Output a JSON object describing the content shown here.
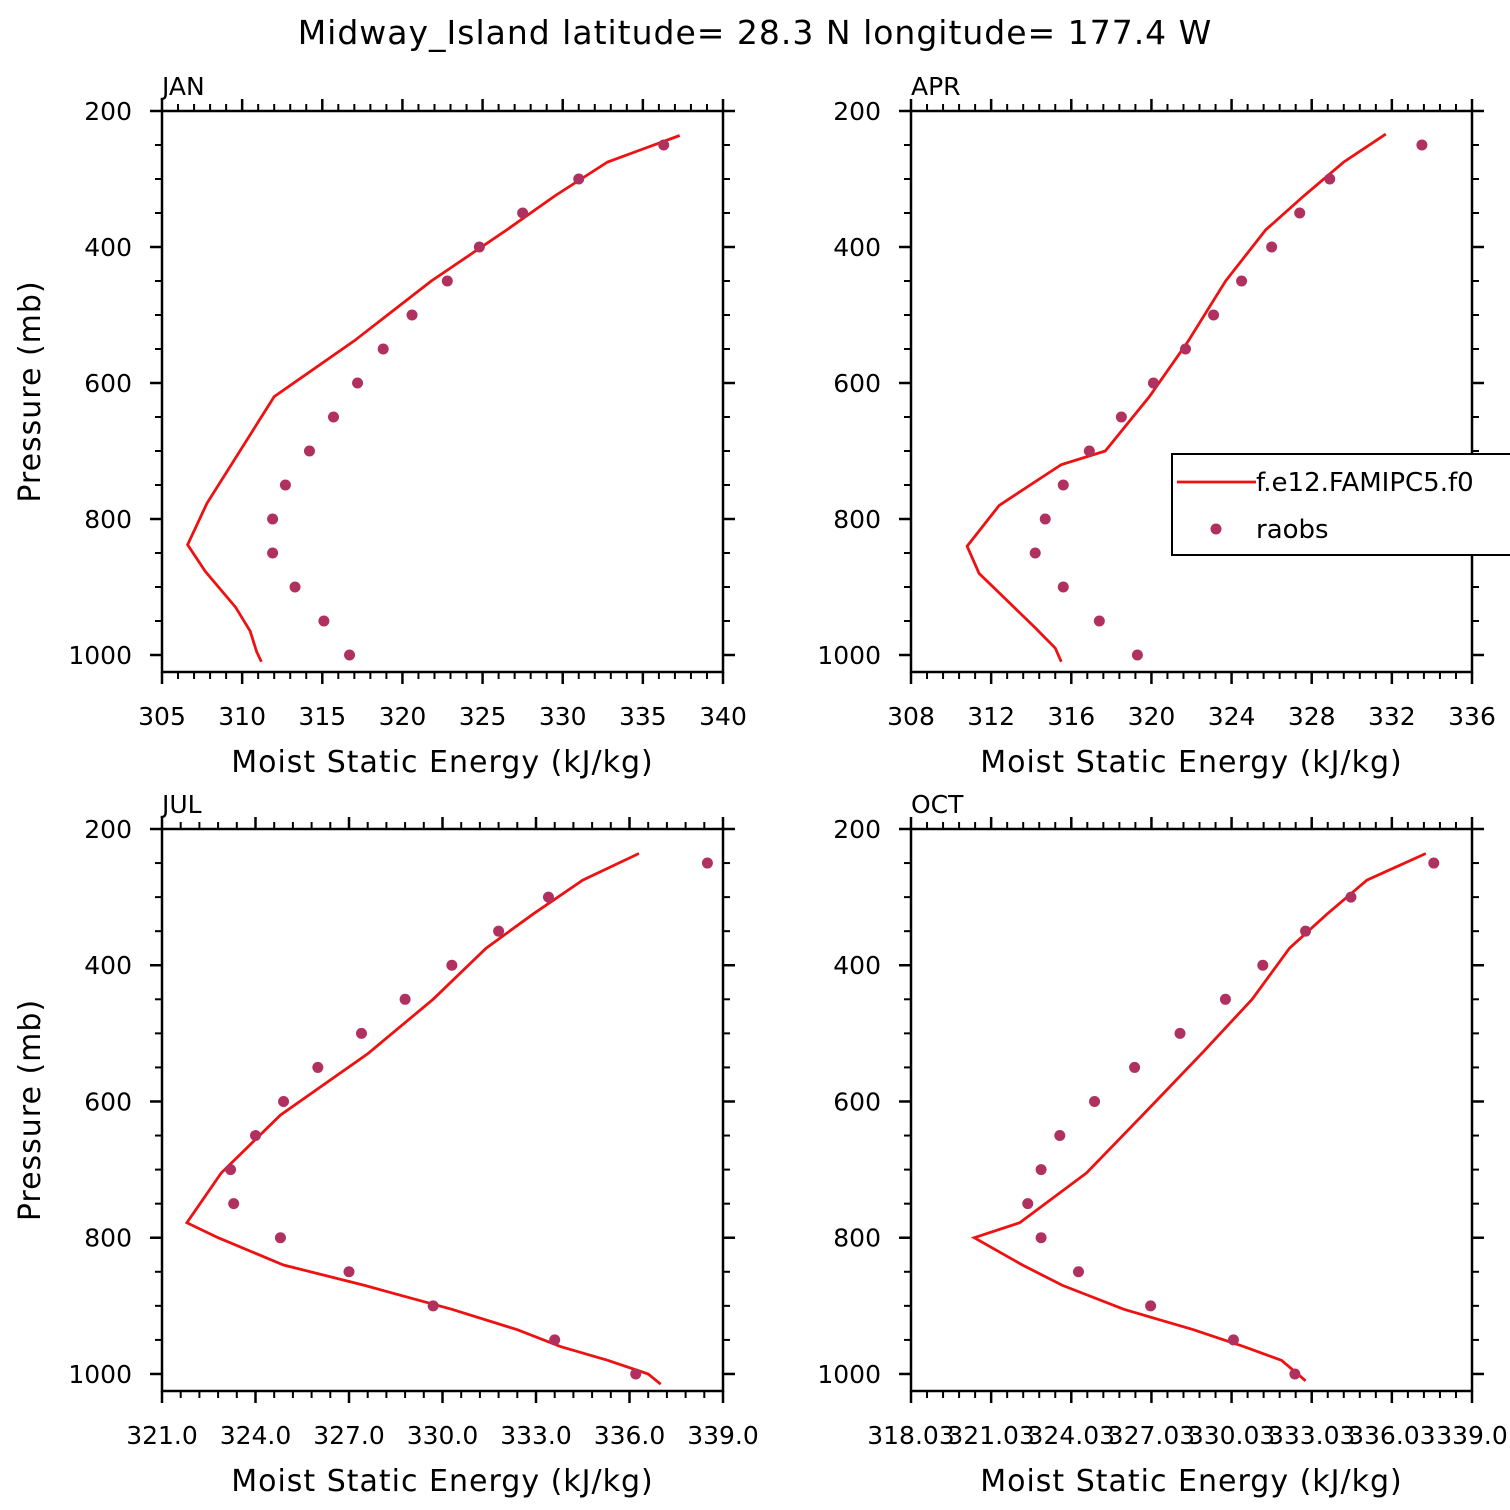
{
  "title": "Midway_Island  latitude= 28.3 N longitude= 177.4 W",
  "colors": {
    "model": "#ee1111",
    "obs": "#b03060",
    "axis": "#000000"
  },
  "legend": {
    "placement": "right-middle of APR panel",
    "items": [
      {
        "label": "f.e12.FAMIPC5.f0",
        "style": "line",
        "color": "#ee1111"
      },
      {
        "label": "raobs",
        "style": "marker",
        "color": "#b03060"
      }
    ]
  },
  "chart_data": [
    {
      "type": "line",
      "panel_title": "JAN",
      "xlabel": "Moist Static Energy (kJ/kg)",
      "ylabel": "Pressure (mb)",
      "xlim": [
        305,
        340
      ],
      "ylim": [
        1025,
        200
      ],
      "y_reversed": true,
      "xticks": [
        "305",
        "310",
        "315",
        "320",
        "325",
        "330",
        "335",
        "340"
      ],
      "yticks": [
        "200",
        "400",
        "600",
        "800",
        "1000"
      ],
      "series": [
        {
          "name": "f.e12.FAMIPC5.f0",
          "style": "line",
          "x": [
            337.3,
            332.8,
            329.5,
            326.5,
            321.8,
            317.0,
            312.0,
            307.8,
            306.6,
            307.7,
            309.6,
            310.5,
            310.9,
            311.2
          ],
          "y": [
            236,
            275,
            325,
            375,
            450,
            538,
            620,
            777,
            838,
            877,
            930,
            965,
            995,
            1010
          ]
        },
        {
          "name": "raobs",
          "style": "marker",
          "x": [
            336.3,
            331.0,
            327.5,
            324.8,
            322.8,
            320.6,
            318.8,
            317.2,
            315.7,
            314.2,
            312.7,
            311.9,
            311.9,
            313.3,
            315.1,
            316.7
          ],
          "y": [
            250,
            300,
            350,
            400,
            450,
            500,
            550,
            600,
            650,
            700,
            750,
            800,
            850,
            900,
            950,
            1000
          ]
        }
      ]
    },
    {
      "type": "line",
      "panel_title": "APR",
      "xlabel": "Moist Static Energy (kJ/kg)",
      "ylabel": "",
      "xlim": [
        308,
        336
      ],
      "ylim": [
        1025,
        200
      ],
      "y_reversed": true,
      "xticks": [
        "308",
        "312",
        "316",
        "320",
        "324",
        "328",
        "332",
        "336"
      ],
      "yticks": [
        "200",
        "400",
        "600",
        "800",
        "1000"
      ],
      "series": [
        {
          "name": "f.e12.FAMIPC5.f0",
          "style": "line",
          "x": [
            331.7,
            329.6,
            327.6,
            325.7,
            323.7,
            321.8,
            319.9,
            317.7,
            315.5,
            312.4,
            310.8,
            311.4,
            312.8,
            314.2,
            315.2,
            315.5
          ],
          "y": [
            234,
            275,
            325,
            375,
            450,
            540,
            620,
            700,
            720,
            780,
            840,
            880,
            920,
            960,
            990,
            1010
          ]
        },
        {
          "name": "raobs",
          "style": "marker",
          "x": [
            333.5,
            328.9,
            327.4,
            326.0,
            324.5,
            323.1,
            321.7,
            320.1,
            318.5,
            316.9,
            315.6,
            314.7,
            314.2,
            315.6,
            317.4,
            319.3
          ],
          "y": [
            250,
            300,
            350,
            400,
            450,
            500,
            550,
            600,
            650,
            700,
            750,
            800,
            850,
            900,
            950,
            1000
          ]
        }
      ]
    },
    {
      "type": "line",
      "panel_title": "JUL",
      "xlabel": "Moist Static Energy (kJ/kg)",
      "ylabel": "Pressure (mb)",
      "xlim": [
        321.0,
        339.0
      ],
      "ylim": [
        1025,
        200
      ],
      "y_reversed": true,
      "xticks": [
        "321.0",
        "324.0",
        "327.0",
        "330.0",
        "333.0",
        "336.0",
        "339.0"
      ],
      "yticks": [
        "200",
        "400",
        "600",
        "800",
        "1000"
      ],
      "series": [
        {
          "name": "f.e12.FAMIPC5.f0",
          "style": "line",
          "x": [
            336.3,
            334.5,
            332.9,
            331.4,
            329.7,
            327.6,
            324.8,
            322.9,
            321.8,
            322.8,
            324.9,
            327.5,
            330.3,
            332.4,
            333.8,
            335.3,
            336.6,
            337.0
          ],
          "y": [
            236,
            275,
            325,
            375,
            450,
            530,
            620,
            705,
            778,
            800,
            840,
            870,
            905,
            935,
            960,
            980,
            1000,
            1015
          ]
        },
        {
          "name": "raobs",
          "style": "marker",
          "x": [
            338.5,
            333.4,
            331.8,
            330.3,
            328.8,
            327.4,
            326.0,
            324.9,
            324.0,
            323.2,
            323.3,
            324.8,
            327.0,
            329.7,
            333.6,
            336.2
          ],
          "y": [
            250,
            300,
            350,
            400,
            450,
            500,
            550,
            600,
            650,
            700,
            750,
            800,
            850,
            900,
            950,
            1000
          ]
        }
      ]
    },
    {
      "type": "line",
      "panel_title": "OCT",
      "xlabel": "Moist Static Energy (kJ/kg)",
      "ylabel": "",
      "xlim": [
        318.03,
        339.03
      ],
      "ylim": [
        1025,
        200
      ],
      "y_reversed": true,
      "xticks": [
        "318.03",
        "321.03",
        "324.03",
        "327.03",
        "330.03",
        "333.03",
        "336.03",
        "339.0"
      ],
      "yticks": [
        "200",
        "400",
        "600",
        "800",
        "1000"
      ],
      "series": [
        {
          "name": "f.e12.FAMIPC5.f0",
          "style": "line",
          "x": [
            337.3,
            335.1,
            333.6,
            332.2,
            330.8,
            328.9,
            326.7,
            324.6,
            322.1,
            320.4,
            322.2,
            323.7,
            326.0,
            328.6,
            330.5,
            331.9,
            332.5,
            332.8
          ],
          "y": [
            236,
            275,
            325,
            375,
            450,
            530,
            620,
            705,
            778,
            800,
            840,
            870,
            905,
            935,
            960,
            980,
            1000,
            1010
          ]
        },
        {
          "name": "raobs",
          "style": "marker",
          "x": [
            337.6,
            334.5,
            332.8,
            331.2,
            329.8,
            328.1,
            326.4,
            324.9,
            323.6,
            322.9,
            322.4,
            322.9,
            324.3,
            327.0,
            330.1,
            332.4
          ],
          "y": [
            250,
            300,
            350,
            400,
            450,
            500,
            550,
            600,
            650,
            700,
            750,
            800,
            850,
            900,
            950,
            1000
          ]
        }
      ]
    }
  ]
}
